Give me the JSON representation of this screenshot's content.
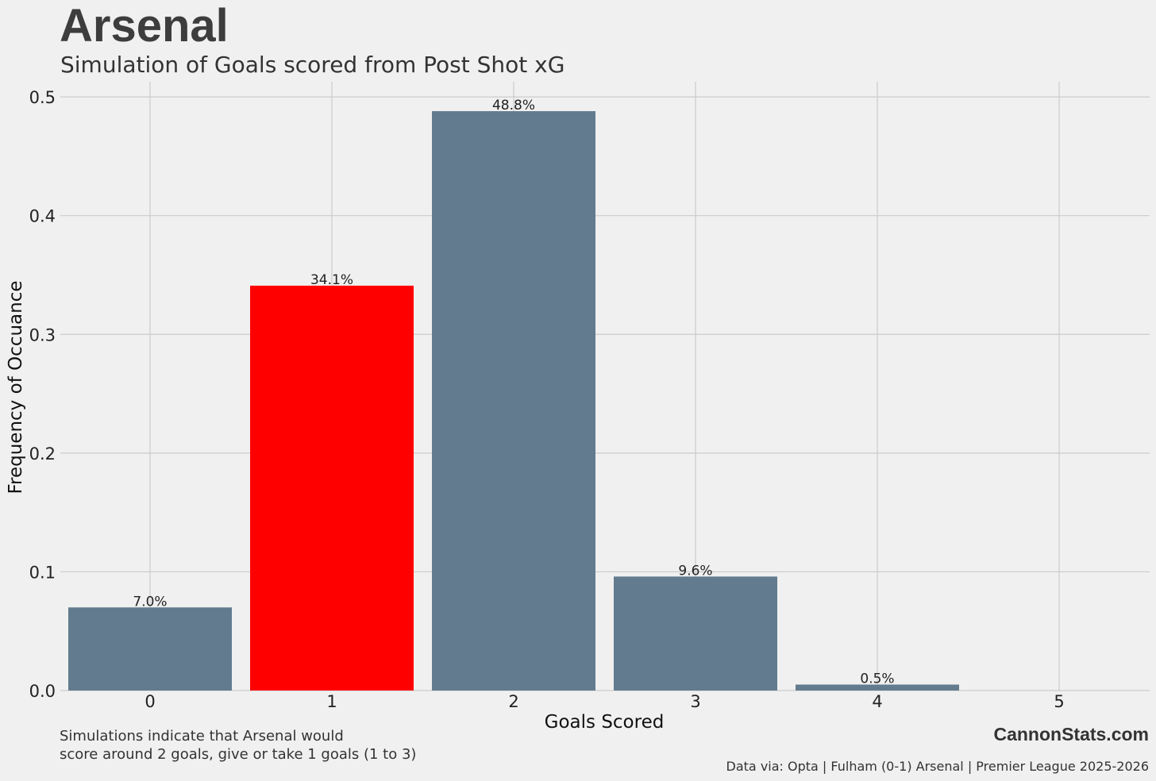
{
  "chart_data": {
    "type": "bar",
    "title": "Arsenal",
    "subtitle": "Simulation of Goals scored from Post Shot xG",
    "xlabel": "Goals Scored",
    "ylabel": "Frequency of Occuance",
    "categories": [
      "0",
      "1",
      "2",
      "3",
      "4",
      "5"
    ],
    "values": [
      0.07,
      0.341,
      0.488,
      0.096,
      0.005,
      0
    ],
    "data_labels": [
      "7.0%",
      "34.1%",
      "48.8%",
      "9.6%",
      "0.5%",
      ""
    ],
    "highlight_index": 1,
    "yticks": [
      "0.0",
      "0.1",
      "0.2",
      "0.3",
      "0.4",
      "0.5"
    ],
    "ylim": [
      0,
      0.52
    ],
    "grid": true,
    "colors": {
      "bar": "#627b8e",
      "highlight": "#ff0000",
      "background": "#f0f0f0",
      "grid": "#cbcbcb"
    }
  },
  "footnote": "Simulations indicate that Arsenal would\nscore around 2 goals, give or take 1 goals (1 to 3)",
  "brand": "CannonStats.com",
  "source": "Data via: Opta | Fulham (0-1) Arsenal | Premier League 2025-2026"
}
